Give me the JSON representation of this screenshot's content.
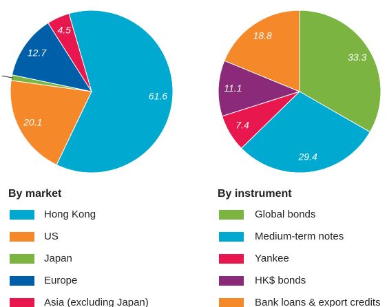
{
  "chart_data": [
    {
      "type": "pie",
      "title": "By market",
      "categories": [
        "Hong Kong",
        "US",
        "Japan",
        "Europe",
        "Asia (excluding Japan)"
      ],
      "values": [
        61.6,
        20.1,
        1.1,
        12.7,
        4.5
      ],
      "colors": [
        "#00a9cf",
        "#f5892a",
        "#7bb441",
        "#005fa9",
        "#e8184f"
      ]
    },
    {
      "type": "pie",
      "title": "By instrument",
      "categories": [
        "Global bonds",
        "Medium-term notes",
        "Yankee",
        "HK$ bonds",
        "Bank loans & export credits"
      ],
      "values": [
        33.3,
        29.4,
        7.4,
        11.1,
        18.8
      ],
      "colors": [
        "#7bb441",
        "#00a9cf",
        "#e8184f",
        "#8a2a78",
        "#f5892a"
      ]
    }
  ]
}
